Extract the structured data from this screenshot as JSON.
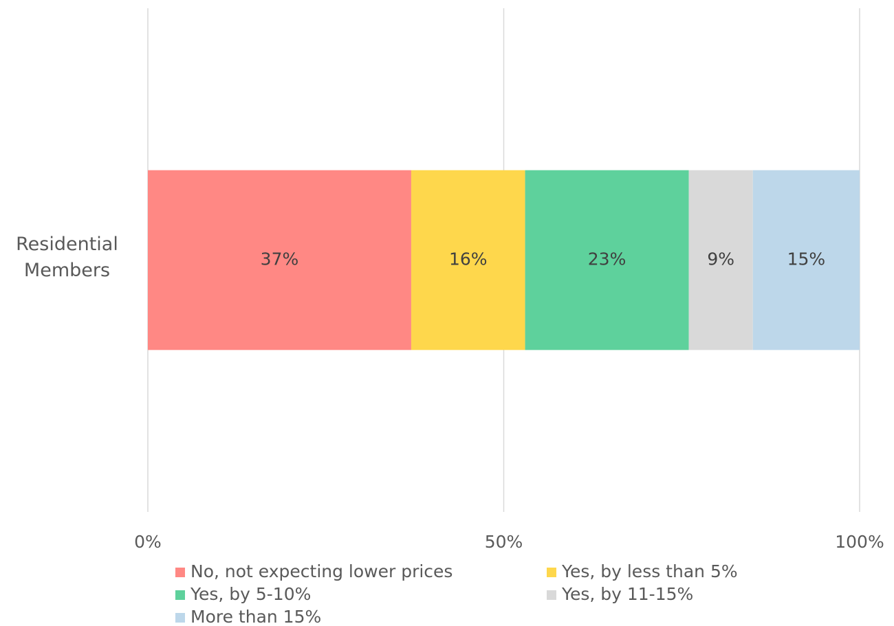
{
  "chart_data": {
    "type": "stacked_barh",
    "categories": [
      "Residential Members"
    ],
    "series": [
      {
        "name": "No, not expecting lower prices",
        "color": "#ff8884",
        "values": [
          37
        ],
        "value_labels": [
          "37%"
        ]
      },
      {
        "name": "Yes, by less than 5%",
        "color": "#fed74c",
        "values": [
          16
        ],
        "value_labels": [
          "16%"
        ]
      },
      {
        "name": "Yes, by 5-10%",
        "color": "#5ed19c",
        "values": [
          23
        ],
        "value_labels": [
          "23%"
        ]
      },
      {
        "name": "Yes, by 11-15%",
        "color": "#d9d9d9",
        "values": [
          9
        ],
        "value_labels": [
          "9%"
        ]
      },
      {
        "name": "More than 15%",
        "color": "#bdd7ea",
        "values": [
          15
        ],
        "value_labels": [
          "15%"
        ]
      }
    ],
    "xlim": [
      0,
      100
    ],
    "xticks": [
      {
        "value": 0,
        "label": "0%"
      },
      {
        "value": 50,
        "label": "50%"
      },
      {
        "value": 100,
        "label": "100%"
      }
    ],
    "grid": true,
    "legend": "bottom"
  }
}
